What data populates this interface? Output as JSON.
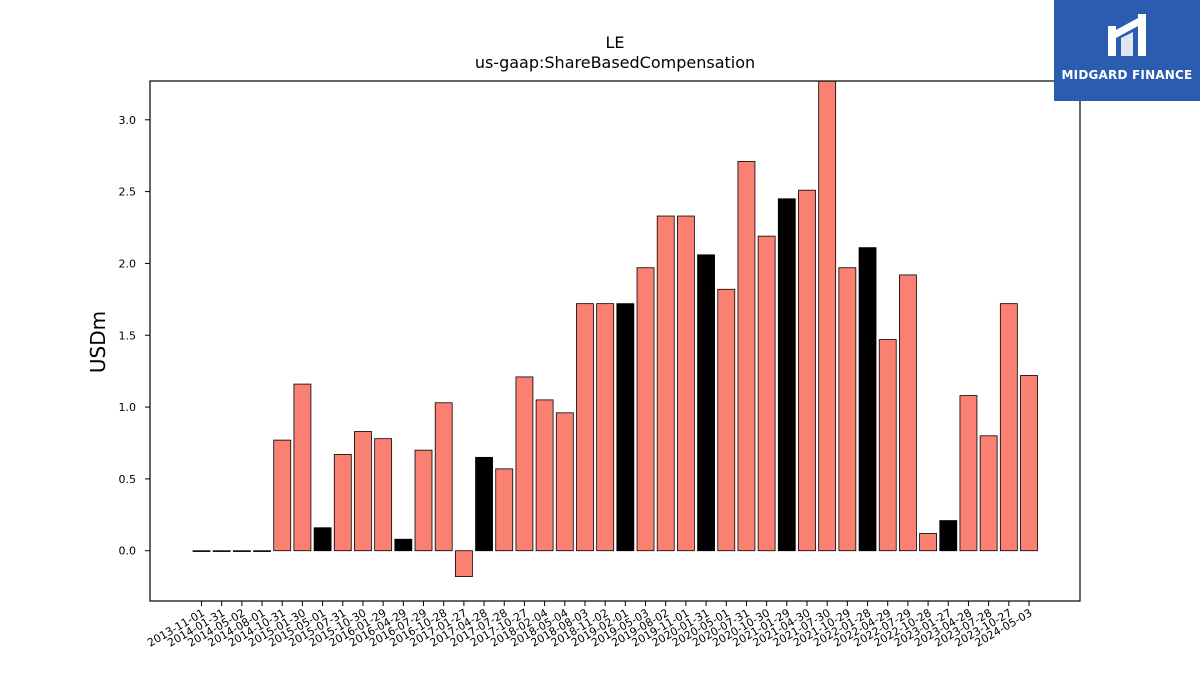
{
  "brand": {
    "name": "MIDGARD FINANCE",
    "bg_color": "#2a5db0"
  },
  "chart_data": {
    "type": "bar",
    "title": "LE",
    "subtitle": "us-gaap:ShareBasedCompensation",
    "ylabel": "USDm",
    "xlabel": "",
    "ylim": [
      -0.35,
      3.27
    ],
    "yticks": [
      "0.0",
      "0.5",
      "1.0",
      "1.5",
      "2.0",
      "2.5",
      "3.0"
    ],
    "grid": false,
    "colors": {
      "default": "#fa8072",
      "highlight": "#000000",
      "edge": "#000000"
    },
    "categories": [
      "2013-11-01",
      "2014-01-31",
      "2014-05-02",
      "2014-08-01",
      "2014-10-31",
      "2015-01-30",
      "2015-05-01",
      "2015-07-31",
      "2015-10-30",
      "2016-01-29",
      "2016-04-29",
      "2016-07-29",
      "2016-10-28",
      "2017-01-27",
      "2017-04-28",
      "2017-07-28",
      "2017-10-27",
      "2018-02-04",
      "2018-05-04",
      "2018-08-03",
      "2018-11-02",
      "2019-02-01",
      "2019-05-03",
      "2019-08-02",
      "2019-11-01",
      "2020-01-31",
      "2020-05-01",
      "2020-07-31",
      "2020-10-30",
      "2021-01-29",
      "2021-04-30",
      "2021-07-30",
      "2021-10-29",
      "2022-01-28",
      "2022-04-29",
      "2022-07-29",
      "2022-10-28",
      "2023-01-27",
      "2023-04-28",
      "2023-07-28",
      "2023-10-27",
      "2024-05-03"
    ],
    "values": [
      0.0,
      0.0,
      0.0,
      0.0,
      0.77,
      1.16,
      0.16,
      0.67,
      0.83,
      0.78,
      0.08,
      0.7,
      1.03,
      -0.18,
      0.65,
      0.57,
      1.21,
      1.05,
      0.96,
      1.72,
      1.72,
      1.72,
      1.97,
      2.33,
      2.33,
      2.06,
      1.82,
      2.71,
      2.19,
      2.45,
      2.51,
      3.27,
      1.97,
      2.11,
      1.47,
      1.92,
      0.12,
      0.21,
      1.08,
      0.8,
      1.72,
      1.22
    ],
    "highlight": [
      false,
      false,
      false,
      false,
      false,
      false,
      true,
      false,
      false,
      false,
      true,
      false,
      false,
      false,
      true,
      false,
      false,
      false,
      false,
      false,
      false,
      true,
      false,
      false,
      false,
      true,
      false,
      false,
      false,
      true,
      false,
      false,
      false,
      true,
      false,
      false,
      false,
      true,
      false,
      false,
      false,
      false
    ]
  }
}
